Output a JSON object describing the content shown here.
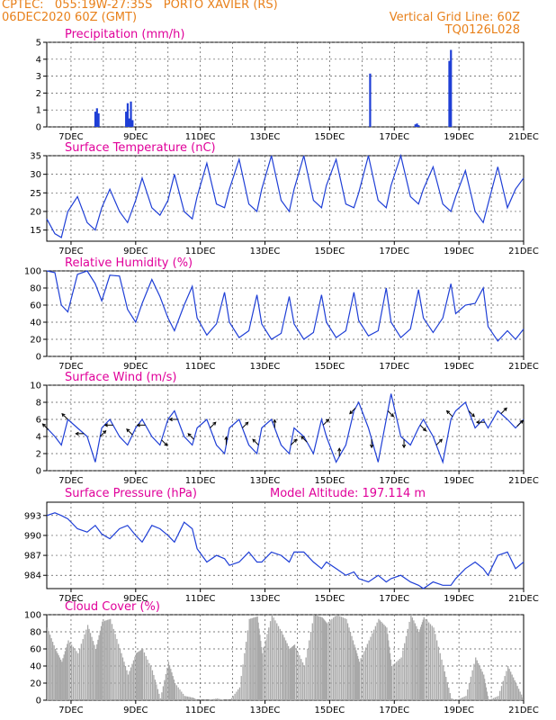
{
  "header": {
    "line1_left": "CPTEC:   055:19W-27:35S   PORTO XAVIER (RS)",
    "line2_left": "06DEC2020 60Z (GMT)",
    "line1_right": "Vertical Grid Line: 60Z",
    "line2_right": "TQ0126L028"
  },
  "colors": {
    "header": "#e8801a",
    "title": "#e0009a",
    "series": "#1f3fd6",
    "cloud": "#a8a8a8",
    "grid": "#555555"
  },
  "x_ticks": [
    "7DEC",
    "9DEC",
    "11DEC",
    "13DEC",
    "15DEC",
    "17DEC",
    "19DEC",
    "21DEC"
  ],
  "chart_data": [
    {
      "type": "bar",
      "title": "Precipitation (mm/h)",
      "ylim": [
        0,
        5
      ],
      "yticks": [
        "0",
        "1",
        "2",
        "3",
        "4",
        "5"
      ],
      "x_range_days": [
        6.25,
        21.0
      ],
      "bars": [
        {
          "x": 7.75,
          "y": 0.9
        },
        {
          "x": 7.8,
          "y": 1.1
        },
        {
          "x": 7.85,
          "y": 0.8
        },
        {
          "x": 8.7,
          "y": 0.9
        },
        {
          "x": 8.75,
          "y": 1.4
        },
        {
          "x": 8.8,
          "y": 0.5
        },
        {
          "x": 8.85,
          "y": 1.5
        },
        {
          "x": 8.9,
          "y": 0.4
        },
        {
          "x": 16.25,
          "y": 3.15
        },
        {
          "x": 17.65,
          "y": 0.15
        },
        {
          "x": 17.7,
          "y": 0.2
        },
        {
          "x": 17.75,
          "y": 0.1
        },
        {
          "x": 18.7,
          "y": 3.9
        },
        {
          "x": 18.75,
          "y": 4.55
        }
      ]
    },
    {
      "type": "line",
      "title": "Surface Temperature (nC)",
      "ylim": [
        12,
        35
      ],
      "yticks": [
        "15",
        "20",
        "25",
        "30",
        "35"
      ],
      "series": [
        {
          "x": [
            6.25,
            6.5,
            6.7,
            6.9,
            7.2,
            7.5,
            7.75,
            7.95,
            8.2,
            8.5,
            8.75,
            9.0,
            9.2,
            9.5,
            9.75,
            10.0,
            10.2,
            10.5,
            10.75,
            10.9,
            11.2,
            11.5,
            11.75,
            11.9,
            12.2,
            12.5,
            12.75,
            12.9,
            13.2,
            13.5,
            13.75,
            13.9,
            14.2,
            14.5,
            14.75,
            14.9,
            15.2,
            15.5,
            15.75,
            15.9,
            16.2,
            16.5,
            16.75,
            16.9,
            17.2,
            17.5,
            17.75,
            17.9,
            18.2,
            18.5,
            18.75,
            18.9,
            19.2,
            19.5,
            19.75,
            19.9,
            20.2,
            20.5,
            20.75,
            21.0
          ],
          "y": [
            18,
            14,
            13,
            20,
            24,
            17,
            15,
            21,
            26,
            20,
            17,
            23,
            29,
            21,
            19,
            23,
            30,
            20,
            18,
            24,
            33,
            22,
            21,
            26,
            34,
            22,
            20,
            26,
            35,
            23,
            20,
            26,
            35,
            23,
            21,
            27,
            34,
            22,
            21,
            25,
            35,
            23,
            21,
            27,
            35,
            24,
            22,
            26,
            32,
            22,
            20,
            24,
            31,
            20,
            17,
            22,
            32,
            21,
            26,
            29
          ]
        }
      ]
    },
    {
      "type": "line",
      "title": "Relative Humidity (%)",
      "ylim": [
        0,
        100
      ],
      "yticks": [
        "0",
        "20",
        "40",
        "60",
        "80",
        "100"
      ],
      "series": [
        {
          "x": [
            6.25,
            6.5,
            6.7,
            6.9,
            7.2,
            7.5,
            7.75,
            7.95,
            8.2,
            8.5,
            8.75,
            9.0,
            9.2,
            9.5,
            9.75,
            10.0,
            10.2,
            10.5,
            10.75,
            10.9,
            11.2,
            11.5,
            11.75,
            11.9,
            12.2,
            12.5,
            12.75,
            12.9,
            13.2,
            13.5,
            13.75,
            13.9,
            14.2,
            14.5,
            14.75,
            14.9,
            15.2,
            15.5,
            15.75,
            15.9,
            16.2,
            16.5,
            16.75,
            16.9,
            17.2,
            17.5,
            17.75,
            17.9,
            18.2,
            18.5,
            18.75,
            18.9,
            19.2,
            19.5,
            19.75,
            19.9,
            20.2,
            20.5,
            20.75,
            21.0
          ],
          "y": [
            100,
            98,
            60,
            52,
            96,
            100,
            85,
            65,
            95,
            94,
            55,
            40,
            62,
            90,
            70,
            45,
            30,
            60,
            82,
            45,
            25,
            38,
            75,
            40,
            22,
            30,
            72,
            38,
            20,
            27,
            70,
            38,
            20,
            28,
            72,
            40,
            22,
            30,
            75,
            42,
            24,
            30,
            80,
            40,
            22,
            32,
            78,
            45,
            28,
            45,
            85,
            50,
            60,
            62,
            80,
            35,
            18,
            30,
            20,
            32
          ]
        }
      ]
    },
    {
      "type": "line",
      "title": "Surface Wind (m/s)",
      "ylim": [
        0,
        10
      ],
      "yticks": [
        "0",
        "2",
        "4",
        "6",
        "8",
        "10"
      ],
      "series": [
        {
          "x": [
            6.25,
            6.5,
            6.7,
            6.9,
            7.2,
            7.5,
            7.75,
            7.95,
            8.2,
            8.5,
            8.75,
            9.0,
            9.2,
            9.5,
            9.75,
            10.0,
            10.2,
            10.5,
            10.75,
            10.9,
            11.2,
            11.5,
            11.75,
            11.9,
            12.2,
            12.5,
            12.75,
            12.9,
            13.2,
            13.5,
            13.75,
            13.9,
            14.2,
            14.5,
            14.75,
            14.9,
            15.2,
            15.5,
            15.75,
            15.9,
            16.2,
            16.5,
            16.75,
            16.9,
            17.2,
            17.5,
            17.75,
            17.9,
            18.2,
            18.5,
            18.75,
            18.9,
            19.2,
            19.5,
            19.75,
            19.9,
            20.2,
            20.5,
            20.75,
            21.0
          ],
          "y": [
            5,
            4,
            3,
            6,
            5,
            4,
            1,
            5,
            6,
            4,
            3,
            5,
            6,
            4,
            3,
            6,
            7,
            4,
            3,
            5,
            6,
            3,
            2,
            5,
            6,
            3,
            2,
            5,
            6,
            3,
            2,
            5,
            4,
            2,
            6,
            4,
            1,
            3,
            7,
            8,
            5,
            1,
            6,
            9,
            4,
            3,
            5,
            6,
            4,
            1,
            6,
            7,
            8,
            5,
            6,
            5,
            7,
            6,
            5,
            6
          ]
        }
      ],
      "arrows": [
        {
          "x": 6.3,
          "dir": "NW"
        },
        {
          "x": 6.9,
          "dir": "NW"
        },
        {
          "x": 7.4,
          "dir": "W"
        },
        {
          "x": 7.9,
          "dir": "NE"
        },
        {
          "x": 8.3,
          "dir": "W"
        },
        {
          "x": 8.9,
          "dir": "NW"
        },
        {
          "x": 9.3,
          "dir": "W"
        },
        {
          "x": 9.8,
          "dir": "SE"
        },
        {
          "x": 10.3,
          "dir": "W"
        },
        {
          "x": 10.8,
          "dir": "NW"
        },
        {
          "x": 11.3,
          "dir": "NE"
        },
        {
          "x": 11.8,
          "dir": "N"
        },
        {
          "x": 12.3,
          "dir": "NE"
        },
        {
          "x": 12.8,
          "dir": "NW"
        },
        {
          "x": 13.3,
          "dir": "N"
        },
        {
          "x": 13.8,
          "dir": "NE"
        },
        {
          "x": 14.3,
          "dir": "NW"
        },
        {
          "x": 14.8,
          "dir": "NE"
        },
        {
          "x": 15.3,
          "dir": "N"
        },
        {
          "x": 15.8,
          "dir": "SW"
        },
        {
          "x": 16.3,
          "dir": "S"
        },
        {
          "x": 16.8,
          "dir": "SE"
        },
        {
          "x": 17.3,
          "dir": "S"
        },
        {
          "x": 17.8,
          "dir": "SE"
        },
        {
          "x": 18.3,
          "dir": "NE"
        },
        {
          "x": 18.8,
          "dir": "NW"
        },
        {
          "x": 19.3,
          "dir": "SE"
        },
        {
          "x": 19.8,
          "dir": "W"
        },
        {
          "x": 20.3,
          "dir": "NE"
        },
        {
          "x": 20.8,
          "dir": "NE"
        }
      ]
    },
    {
      "type": "line",
      "title": "Surface Pressure (hPa)",
      "annotation": "Model Altitude: 197.114 m",
      "ylim": [
        982,
        995
      ],
      "yticks": [
        "984",
        "987",
        "990",
        "993"
      ],
      "series": [
        {
          "x": [
            6.25,
            6.5,
            6.7,
            6.9,
            7.2,
            7.5,
            7.75,
            7.95,
            8.2,
            8.5,
            8.75,
            9.0,
            9.2,
            9.5,
            9.75,
            10.0,
            10.2,
            10.5,
            10.75,
            10.9,
            11.2,
            11.5,
            11.75,
            11.9,
            12.2,
            12.5,
            12.75,
            12.9,
            13.2,
            13.5,
            13.75,
            13.9,
            14.2,
            14.5,
            14.75,
            14.9,
            15.2,
            15.5,
            15.75,
            15.9,
            16.2,
            16.5,
            16.75,
            16.9,
            17.2,
            17.5,
            17.75,
            17.9,
            18.2,
            18.5,
            18.75,
            18.9,
            19.2,
            19.5,
            19.75,
            19.9,
            20.2,
            20.5,
            20.75,
            21.0
          ],
          "y": [
            993,
            993.4,
            993,
            992.5,
            991,
            990.5,
            991.5,
            990.2,
            989.5,
            991,
            991.5,
            990,
            989,
            991.5,
            991,
            990,
            989,
            992,
            991,
            988,
            986,
            987,
            986.5,
            985.5,
            986,
            987.5,
            986,
            986,
            987.5,
            987,
            986,
            987.5,
            987.5,
            986,
            985,
            986,
            985,
            984,
            984.5,
            983.5,
            983,
            984,
            983,
            983.5,
            984,
            983,
            982.5,
            982,
            983,
            982.5,
            982.5,
            983.5,
            985,
            986,
            985,
            984,
            987,
            987.5,
            985,
            986
          ]
        }
      ]
    },
    {
      "type": "area",
      "title": "Cloud Cover (%)",
      "ylim": [
        0,
        100
      ],
      "yticks": [
        "0",
        "20",
        "40",
        "60",
        "80",
        "100"
      ],
      "series": [
        {
          "x": [
            6.25,
            6.5,
            6.7,
            6.9,
            7.2,
            7.5,
            7.75,
            7.95,
            8.2,
            8.5,
            8.75,
            9.0,
            9.2,
            9.5,
            9.75,
            10.0,
            10.2,
            10.5,
            10.75,
            10.9,
            11.2,
            11.5,
            11.75,
            11.9,
            12.2,
            12.5,
            12.75,
            12.9,
            13.2,
            13.5,
            13.75,
            13.9,
            14.2,
            14.5,
            14.75,
            14.9,
            15.2,
            15.5,
            15.75,
            15.9,
            16.2,
            16.5,
            16.75,
            16.9,
            17.2,
            17.5,
            17.75,
            17.9,
            18.2,
            18.5,
            18.75,
            18.9,
            19.2,
            19.5,
            19.75,
            19.9,
            20.2,
            20.5,
            20.75,
            21.0
          ],
          "y": [
            85,
            60,
            45,
            70,
            55,
            88,
            60,
            92,
            95,
            60,
            30,
            55,
            60,
            35,
            2,
            45,
            20,
            5,
            3,
            0,
            0,
            2,
            0,
            0,
            15,
            95,
            98,
            55,
            100,
            80,
            60,
            65,
            40,
            100,
            97,
            90,
            100,
            95,
            65,
            45,
            70,
            95,
            85,
            40,
            50,
            100,
            80,
            97,
            85,
            40,
            2,
            0,
            5,
            50,
            30,
            0,
            5,
            40,
            20,
            0
          ]
        }
      ]
    }
  ]
}
